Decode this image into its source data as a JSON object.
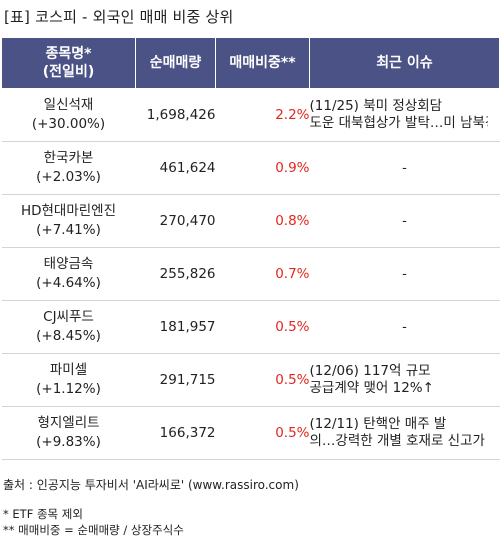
{
  "title": "[표] 코스피 - 외국인 매매 비중 상위",
  "headers": {
    "name": [
      "종목명*",
      "(전일비)"
    ],
    "volume": "순매매량",
    "ratio": "매매비중**",
    "issue": "최근 이슈"
  },
  "rows": [
    {
      "name": "일신석재",
      "change": "(+30.00%)",
      "volume": "1,698,426",
      "ratio": "2.2%",
      "issue": [
        "(11/25) 북미 정상회담",
        "도운 대북협상가 발탁…미 남북경협주 강세"
      ]
    },
    {
      "name": "한국카본",
      "change": "(+2.03%)",
      "volume": "461,624",
      "ratio": "0.9%",
      "issue": [
        "-"
      ]
    },
    {
      "name": "HD현대마린엔진",
      "change": "(+7.41%)",
      "volume": "270,470",
      "ratio": "0.8%",
      "issue": [
        "-"
      ]
    },
    {
      "name": "태양금속",
      "change": "(+4.64%)",
      "volume": "255,826",
      "ratio": "0.7%",
      "issue": [
        "-"
      ]
    },
    {
      "name": "CJ씨푸드",
      "change": "(+8.45%)",
      "volume": "181,957",
      "ratio": "0.5%",
      "issue": [
        "-"
      ]
    },
    {
      "name": "파미셀",
      "change": "(+1.12%)",
      "volume": "291,715",
      "ratio": "0.5%",
      "issue": [
        "(12/06) 117억 규모",
        "공급계약 맺어 12%↑"
      ]
    },
    {
      "name": "형지엘리트",
      "change": "(+9.83%)",
      "volume": "166,372",
      "ratio": "0.5%",
      "issue": [
        "(12/11) 탄핵안 매주 발",
        "의…강력한 개별 호재로 신고가"
      ]
    }
  ],
  "source": "출처 : 인공지능 투자비서 'AI라씨로' (www.rassiro.com)",
  "notes": [
    "* ETF 종목 제외",
    "** 매매비중 = 순매매량 / 상장주식수"
  ],
  "colors": {
    "header_bg": "#4a5286",
    "ratio_text": "#e0281e",
    "row_border": "#d4d4d4"
  }
}
